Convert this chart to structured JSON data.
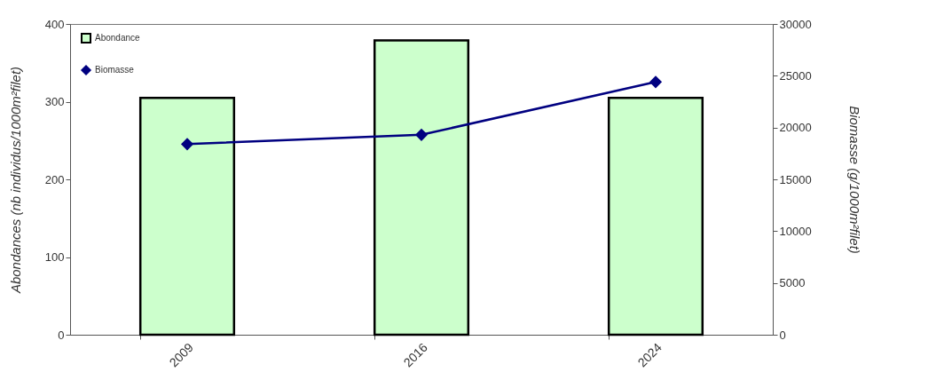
{
  "chart_data": {
    "type": "bar",
    "categories": [
      "2009",
      "2016",
      "2024"
    ],
    "series": [
      {
        "name": "Abondance",
        "color": "#ccffcc",
        "values": [
          305,
          379,
          305
        ]
      },
      {
        "name": "Biomasse",
        "type": "line",
        "axis": "y2",
        "color": "#000080",
        "values": [
          18400,
          19300,
          24400
        ]
      }
    ],
    "ylabel": "Abondances (nb individus/1000m²filet)",
    "y2label": "Biomasse (g/1000m²filet)",
    "ylim": [
      0,
      400
    ],
    "yticks": [
      0,
      100,
      200,
      300,
      400
    ],
    "y2lim": [
      0,
      30000
    ],
    "y2ticks": [
      0,
      5000,
      10000,
      15000,
      20000,
      25000,
      30000
    ],
    "grid": false,
    "legend": "top left",
    "marker": "diamond",
    "line_style": "solid"
  }
}
